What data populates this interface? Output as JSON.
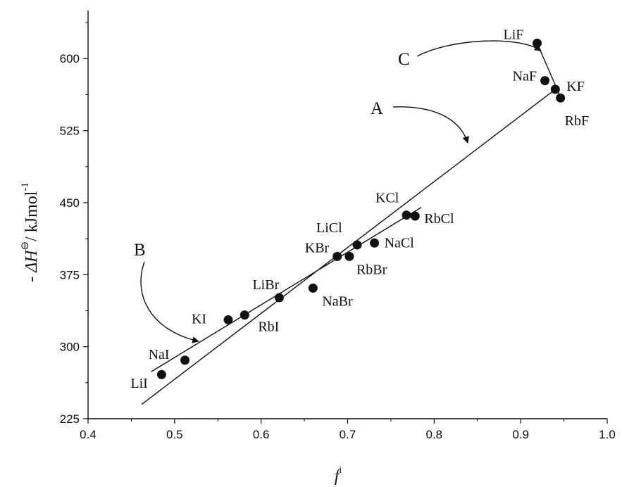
{
  "chart_data": {
    "type": "scatter",
    "xlabel": "f",
    "xlabel_sup": "i",
    "ylabel_prefix": "- ",
    "ylabel_sym": "ΔH",
    "ylabel_sup": "⊖",
    "ylabel_mid": "/ kJmol",
    "ylabel_sup2": "-1",
    "xlim": [
      0.4,
      1.0
    ],
    "ylim": [
      225,
      650
    ],
    "xticks": [
      0.4,
      0.5,
      0.6,
      0.7,
      0.8,
      0.9,
      1.0
    ],
    "xtick_labels": [
      "0.4",
      "0.5",
      "0.6",
      "0.7",
      "0.8",
      "0.9",
      "1.0"
    ],
    "yticks": [
      225,
      300,
      375,
      450,
      525,
      600
    ],
    "ytick_labels": [
      "225",
      "300",
      "375",
      "450",
      "525",
      "600"
    ],
    "grid": false,
    "points": [
      {
        "label": "LiI",
        "x": 0.485,
        "y": 271
      },
      {
        "label": "NaI",
        "x": 0.512,
        "y": 286
      },
      {
        "label": "KI",
        "x": 0.562,
        "y": 328
      },
      {
        "label": "RbI",
        "x": 0.581,
        "y": 333
      },
      {
        "label": "LiBr",
        "x": 0.621,
        "y": 351
      },
      {
        "label": "NaBr",
        "x": 0.66,
        "y": 361
      },
      {
        "label": "KBr",
        "x": 0.688,
        "y": 394
      },
      {
        "label": "RbBr",
        "x": 0.702,
        "y": 394
      },
      {
        "label": "LiCl",
        "x": 0.711,
        "y": 406
      },
      {
        "label": "NaCl",
        "x": 0.731,
        "y": 408
      },
      {
        "label": "KCl",
        "x": 0.768,
        "y": 437
      },
      {
        "label": "RbCl",
        "x": 0.778,
        "y": 436
      },
      {
        "label": "LiF",
        "x": 0.919,
        "y": 616
      },
      {
        "label": "NaF",
        "x": 0.928,
        "y": 577
      },
      {
        "label": "KF",
        "x": 0.94,
        "y": 568
      },
      {
        "label": "RbF",
        "x": 0.946,
        "y": 559
      }
    ],
    "lines": [
      {
        "name": "A",
        "x": [
          0.462,
          0.943
        ],
        "y": [
          240,
          570
        ]
      },
      {
        "name": "B",
        "x": [
          0.473,
          0.785
        ],
        "y": [
          274,
          445
        ]
      },
      {
        "name": "C",
        "x": [
          0.919,
          0.945
        ],
        "y": [
          616,
          562
        ]
      }
    ],
    "annotations": [
      "A",
      "B",
      "C"
    ]
  }
}
